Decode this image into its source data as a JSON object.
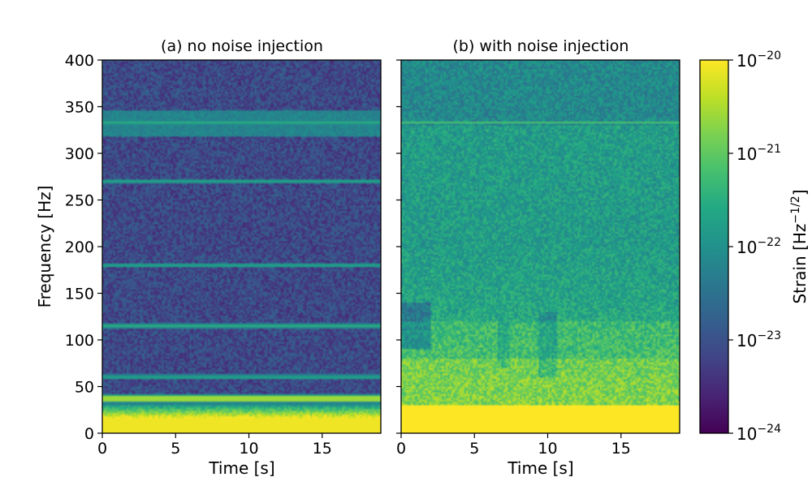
{
  "chart_data": {
    "type": "heatmap",
    "colormap": "viridis",
    "colors": {
      "low": "#440154",
      "mid": "#21918c",
      "high": "#fde725"
    },
    "panels": [
      {
        "id": "a",
        "title": "(a) no noise injection",
        "xlabel": "Time [s]",
        "ylabel": "Frequency [Hz]",
        "xlim": [
          0,
          19
        ],
        "ylim": [
          0,
          400
        ],
        "xticks": [
          0,
          5,
          10,
          15
        ],
        "yticks": [
          0,
          50,
          100,
          150,
          200,
          250,
          300,
          350,
          400
        ],
        "description_lines_hz": [
          15,
          35,
          40,
          60,
          115,
          180,
          270,
          333
        ],
        "broad_bands_hz": [
          [
            30,
            42
          ],
          [
            318,
            345
          ]
        ]
      },
      {
        "id": "b",
        "title": "(b) with noise injection",
        "xlabel": "Time [s]",
        "xlim": [
          0,
          19
        ],
        "ylim": [
          0,
          400
        ],
        "xticks": [
          0,
          5,
          10,
          15
        ],
        "yticks": [
          0,
          50,
          100,
          150,
          200,
          250,
          300,
          350,
          400
        ],
        "description_lines_hz": [
          333
        ],
        "saturated_below_hz": 30
      }
    ],
    "colorbar": {
      "label": "Strain [Hz",
      "label_exponent": "−1/2",
      "label_close": "]",
      "scale": "log",
      "range": [
        1e-24,
        1e-20
      ],
      "tick_base": "10",
      "ticks": [
        {
          "value": 1e-20,
          "exponent": "−20"
        },
        {
          "value": 1e-21,
          "exponent": "−21"
        },
        {
          "value": 1e-22,
          "exponent": "−22"
        },
        {
          "value": 1e-23,
          "exponent": "−23"
        },
        {
          "value": 1e-24,
          "exponent": "−24"
        }
      ]
    }
  }
}
